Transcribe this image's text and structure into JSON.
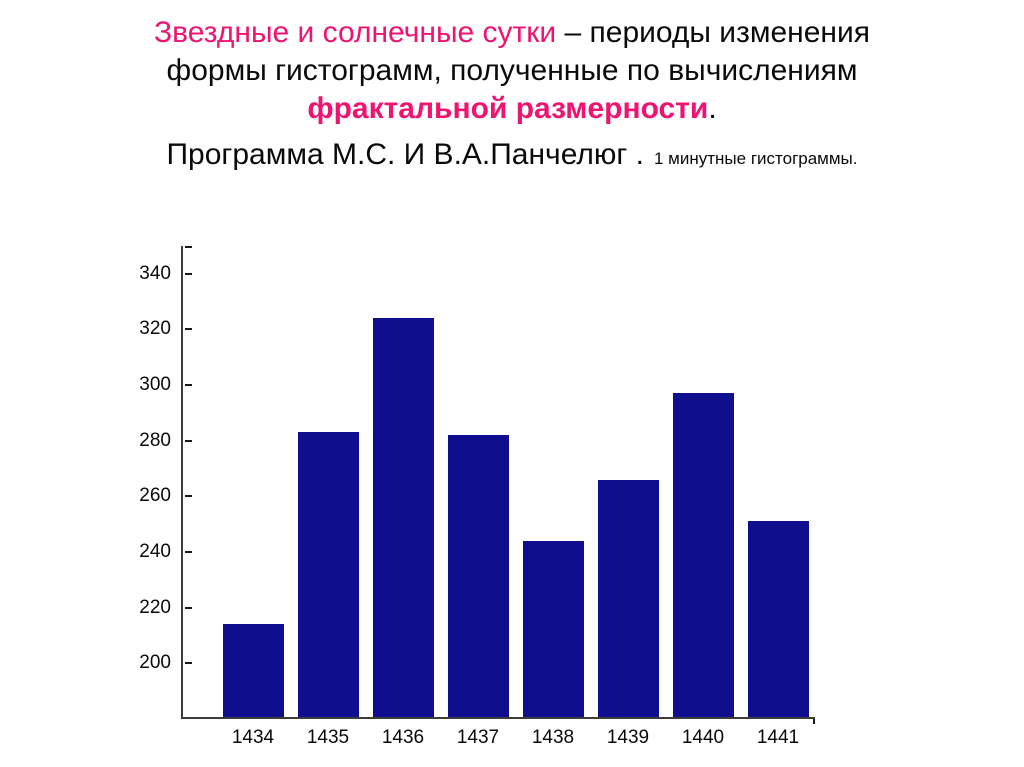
{
  "title": {
    "line1_pink": "Звездные и солнечные сутки",
    "line1_black": " – периоды изменения",
    "line2": "формы гистограмм, полученные по вычислениям",
    "line3_pink": "фрактальной размерности",
    "line3_black": ".",
    "line4_main": "Программа М.С. И В.А.Панчелюг .",
    "line4_small": "1 минутные гистограммы.",
    "pink_color": "#ee1470",
    "text_color": "#0a0a0a"
  },
  "chart_data": {
    "type": "bar",
    "categories": [
      "1434",
      "1435",
      "1436",
      "1437",
      "1438",
      "1439",
      "1440",
      "1441"
    ],
    "values": [
      214,
      283,
      324,
      282,
      244,
      266,
      297,
      251
    ],
    "title": "",
    "xlabel": "",
    "ylabel": "",
    "ylim": [
      180,
      350
    ],
    "yticks": [
      200,
      220,
      240,
      260,
      280,
      300,
      320,
      340
    ],
    "grid": false,
    "legend": "none",
    "bar_color": "#0e0e8f",
    "axis_color": "#3c3c3c",
    "tick_color": "#1a1a1a"
  }
}
